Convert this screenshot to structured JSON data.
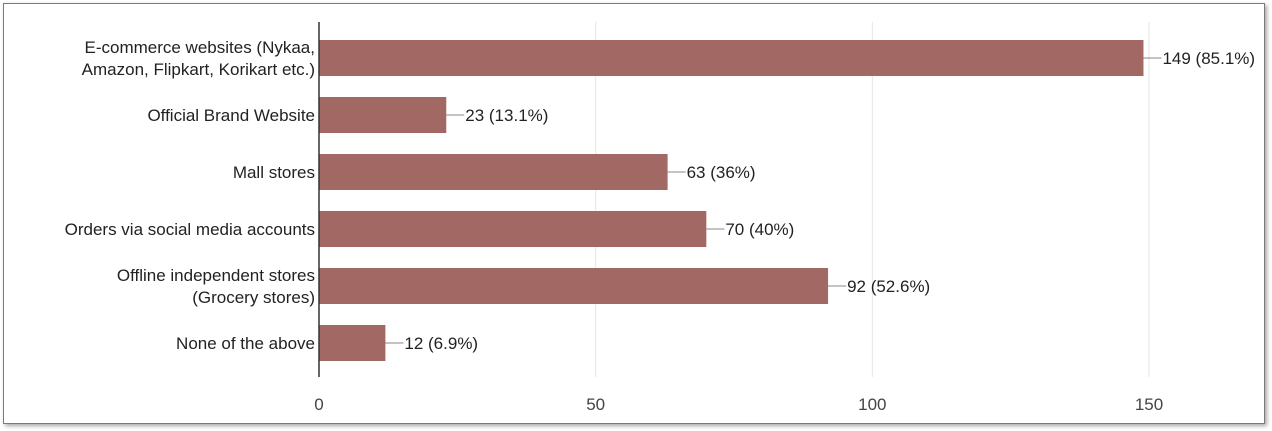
{
  "chart_data": {
    "type": "bar",
    "orientation": "horizontal",
    "categories": [
      [
        "E-commerce websites (Nykaa,",
        "Amazon, Flipkart, Korikart etc.)"
      ],
      [
        "Official Brand Website"
      ],
      [
        "Mall stores"
      ],
      [
        "Orders via social media accounts"
      ],
      [
        "Offline independent stores",
        "(Grocery stores)"
      ],
      [
        "None of the above"
      ]
    ],
    "values": [
      149,
      23,
      63,
      70,
      92,
      12
    ],
    "data_labels": [
      "149 (85.1%)",
      "23 (13.1%)",
      "63 (36%)",
      "70 (40%)",
      "92 (52.6%)",
      "12 (6.9%)"
    ],
    "xlim": [
      0,
      150
    ],
    "x_ticks": [
      0,
      50,
      100,
      150
    ],
    "x_tick_labels": [
      "0",
      "50",
      "100",
      "150"
    ],
    "grid": true,
    "bar_color": "#a26864",
    "gridline_color": "#e6e6e6",
    "axis_color": "#333333"
  }
}
